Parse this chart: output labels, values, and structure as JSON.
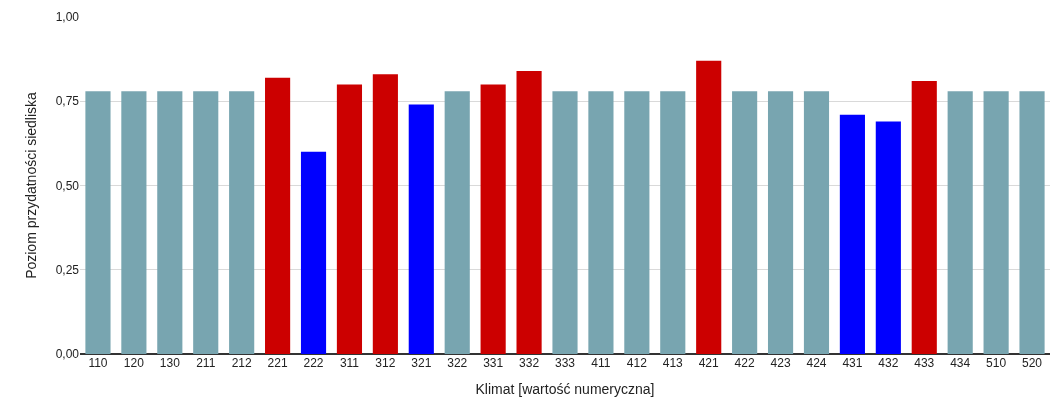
{
  "chart_data": {
    "type": "bar",
    "xlabel": "Klimat [wartość numeryczna]",
    "ylabel": "Poziom przydatności siedliska",
    "categories": [
      "110",
      "120",
      "130",
      "211",
      "212",
      "221",
      "222",
      "311",
      "312",
      "321",
      "322",
      "331",
      "332",
      "333",
      "411",
      "412",
      "413",
      "421",
      "422",
      "423",
      "424",
      "431",
      "432",
      "433",
      "434",
      "510",
      "520"
    ],
    "values": [
      0.78,
      0.78,
      0.78,
      0.78,
      0.78,
      0.82,
      0.6,
      0.8,
      0.83,
      0.74,
      0.78,
      0.8,
      0.84,
      0.78,
      0.78,
      0.78,
      0.78,
      0.87,
      0.78,
      0.78,
      0.78,
      0.71,
      0.69,
      0.81,
      0.78,
      0.78,
      0.78
    ],
    "colors": [
      "#78a5b0",
      "#78a5b0",
      "#78a5b0",
      "#78a5b0",
      "#78a5b0",
      "#cc0000",
      "#0000ff",
      "#cc0000",
      "#cc0000",
      "#0000ff",
      "#78a5b0",
      "#cc0000",
      "#cc0000",
      "#78a5b0",
      "#78a5b0",
      "#78a5b0",
      "#78a5b0",
      "#cc0000",
      "#78a5b0",
      "#78a5b0",
      "#78a5b0",
      "#0000ff",
      "#0000ff",
      "#cc0000",
      "#78a5b0",
      "#78a5b0",
      "#78a5b0"
    ],
    "ylim": [
      0,
      1
    ],
    "yticks": [
      {
        "value": 0,
        "label": "0,00"
      },
      {
        "value": 0.25,
        "label": "0,25"
      },
      {
        "value": 0.5,
        "label": "0,50"
      },
      {
        "value": 0.75,
        "label": "0,75"
      },
      {
        "value": 1,
        "label": "1,00"
      }
    ],
    "grid": "y"
  }
}
